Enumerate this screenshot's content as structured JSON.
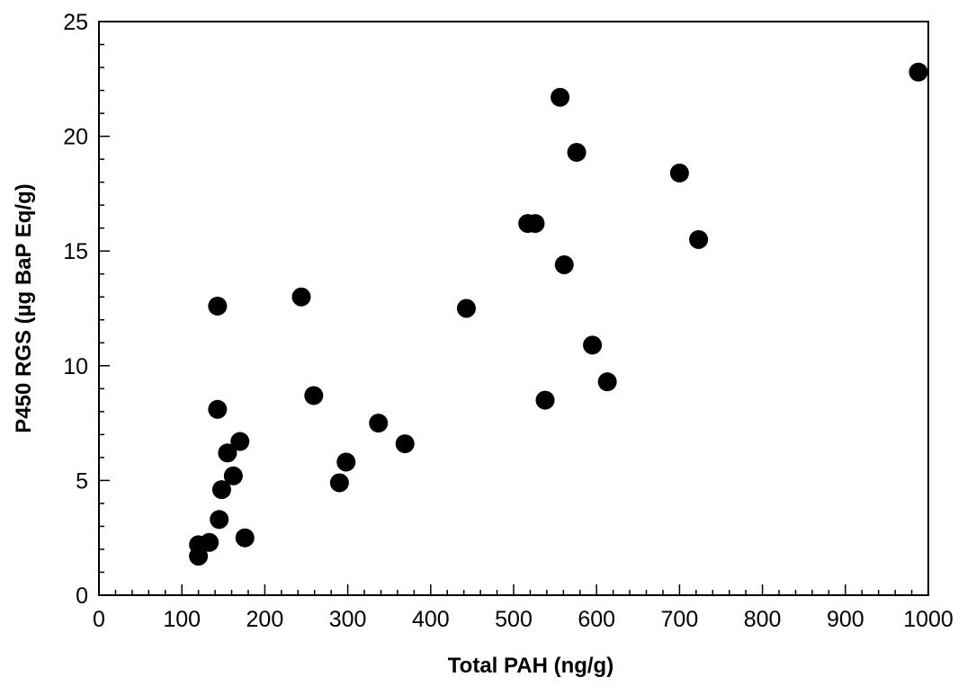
{
  "chart_data": {
    "type": "scatter",
    "title": "",
    "xlabel": "Total PAH (ng/g)",
    "ylabel": "P450 RGS (µg BaP Eq/g)",
    "xlim": [
      0,
      1000
    ],
    "ylim": [
      0,
      25
    ],
    "x_ticks": [
      "0",
      "100",
      "200",
      "300",
      "400",
      "500",
      "600",
      "700",
      "800",
      "900",
      "1000"
    ],
    "y_ticks": [
      "0",
      "5",
      "10",
      "15",
      "20",
      "25"
    ],
    "grid": false,
    "legend": "none",
    "marker_color": "#000000",
    "points": [
      {
        "x": 120,
        "y": 1.7
      },
      {
        "x": 120,
        "y": 2.2
      },
      {
        "x": 133,
        "y": 2.3
      },
      {
        "x": 145,
        "y": 3.3
      },
      {
        "x": 148,
        "y": 4.6
      },
      {
        "x": 155,
        "y": 6.2
      },
      {
        "x": 162,
        "y": 5.2
      },
      {
        "x": 170,
        "y": 6.7
      },
      {
        "x": 176,
        "y": 2.5
      },
      {
        "x": 143,
        "y": 8.1
      },
      {
        "x": 143,
        "y": 12.6
      },
      {
        "x": 244,
        "y": 13.0
      },
      {
        "x": 259,
        "y": 8.7
      },
      {
        "x": 290,
        "y": 4.9
      },
      {
        "x": 298,
        "y": 5.8
      },
      {
        "x": 337,
        "y": 7.5
      },
      {
        "x": 369,
        "y": 6.6
      },
      {
        "x": 443,
        "y": 12.5
      },
      {
        "x": 517,
        "y": 16.2
      },
      {
        "x": 526,
        "y": 16.2
      },
      {
        "x": 538,
        "y": 8.5
      },
      {
        "x": 556,
        "y": 21.7
      },
      {
        "x": 561,
        "y": 14.4
      },
      {
        "x": 576,
        "y": 19.3
      },
      {
        "x": 595,
        "y": 10.9
      },
      {
        "x": 613,
        "y": 9.3
      },
      {
        "x": 700,
        "y": 18.4
      },
      {
        "x": 723,
        "y": 15.5
      },
      {
        "x": 988,
        "y": 22.8
      }
    ]
  }
}
